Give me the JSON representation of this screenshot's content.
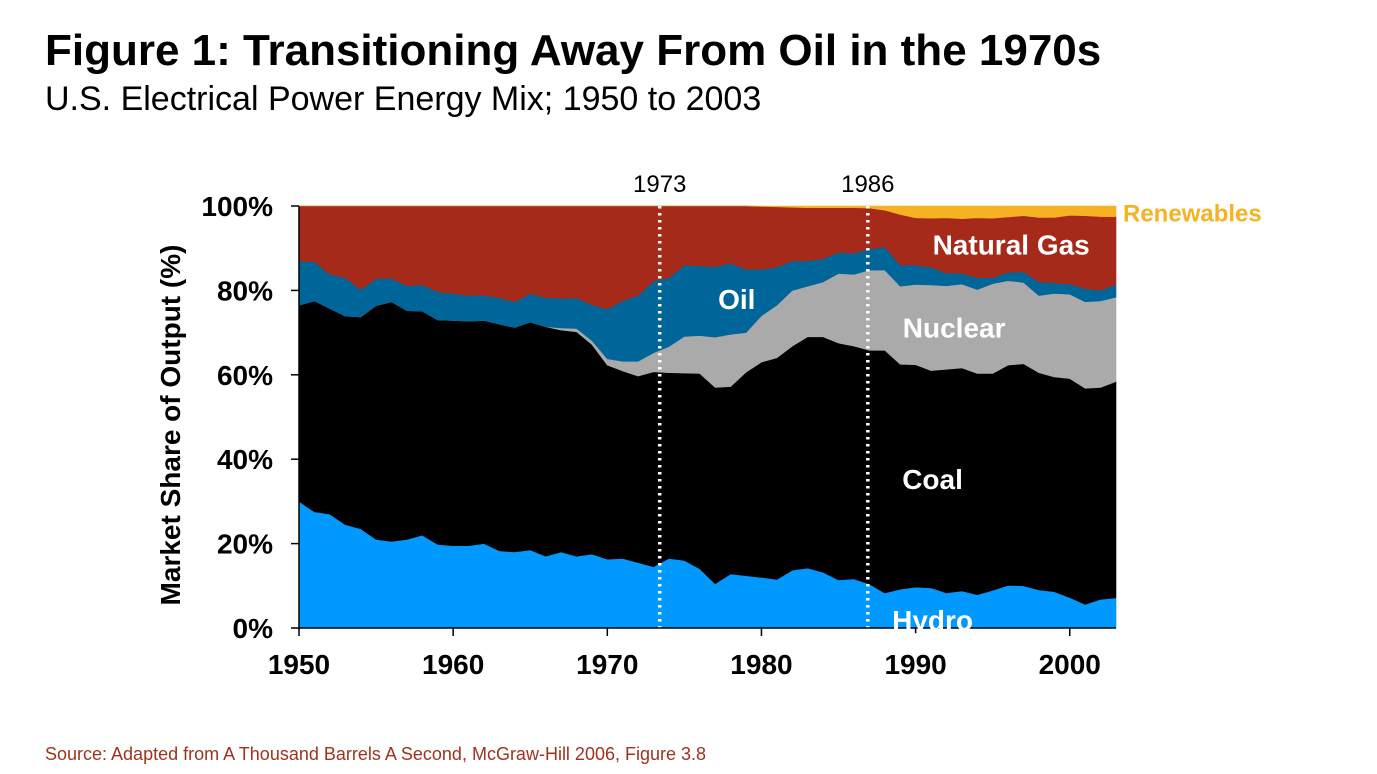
{
  "page": {
    "title": "Figure 1: Transitioning Away From Oil in the 1970s",
    "subtitle": "U.S. Electrical Power Energy Mix; 1950 to 2003",
    "source": "Source: Adapted from A Thousand Barrels A Second, McGraw-Hill 2006, Figure 3.8"
  },
  "chart_data": {
    "type": "area",
    "stacked": true,
    "title": "",
    "xlabel": "",
    "ylabel": "Market Share of Output (%)",
    "xlim": [
      1950,
      2003
    ],
    "ylim": [
      0,
      100
    ],
    "x_ticks": [
      1950,
      1960,
      1970,
      1980,
      1990,
      2000
    ],
    "y_ticks": [
      0,
      20,
      40,
      60,
      80,
      100
    ],
    "x_tick_labels": [
      "1950",
      "1960",
      "1970",
      "1980",
      "1990",
      "2000"
    ],
    "y_tick_labels": [
      "0%",
      "20%",
      "40%",
      "60%",
      "80%",
      "100%"
    ],
    "grid": false,
    "legend": "inline labels",
    "reference_lines": [
      {
        "x": 1973.4,
        "label": "1973"
      },
      {
        "x": 1986.9,
        "label": "1986"
      }
    ],
    "x": [
      1950,
      1951,
      1952,
      1953,
      1954,
      1955,
      1956,
      1957,
      1958,
      1959,
      1960,
      1961,
      1962,
      1963,
      1964,
      1965,
      1966,
      1967,
      1968,
      1969,
      1970,
      1971,
      1972,
      1973,
      1974,
      1975,
      1976,
      1977,
      1978,
      1979,
      1980,
      1981,
      1982,
      1983,
      1984,
      1985,
      1986,
      1987,
      1988,
      1989,
      1990,
      1991,
      1992,
      1993,
      1994,
      1995,
      1996,
      1997,
      1998,
      1999,
      2000,
      2001,
      2002,
      2003
    ],
    "series": [
      {
        "name": "Hydro",
        "color": "#0099ff",
        "values": [
          30,
          27.5,
          27,
          24.5,
          23.5,
          21,
          20.5,
          21,
          22,
          19.8,
          19.5,
          19.5,
          20,
          18.3,
          18,
          18.5,
          17,
          18,
          17,
          17.5,
          16.3,
          16.5,
          15.5,
          14.5,
          16.5,
          16,
          14,
          10.5,
          12.8,
          12.4,
          12,
          11.5,
          13.7,
          14.2,
          13.2,
          11.4,
          11.6,
          10.4,
          8.3,
          9.2,
          9.7,
          9.5,
          8.3,
          8.8,
          7.9,
          8.9,
          10.1,
          10,
          9,
          8.6,
          7.2,
          5.6,
          6.8,
          7.1
        ]
      },
      {
        "name": "Coal",
        "color": "#000000",
        "values": [
          46.5,
          50,
          48.7,
          49.4,
          50.2,
          55.4,
          56.8,
          54.2,
          53.1,
          53.2,
          53.4,
          53.2,
          52.9,
          53.7,
          53.2,
          54,
          54.4,
          52.6,
          53.2,
          49.7,
          46,
          44.4,
          44.2,
          46.2,
          44,
          44.4,
          46.3,
          46.5,
          44.4,
          48.2,
          51,
          52.5,
          53.1,
          54.8,
          55.8,
          56.1,
          55.2,
          55.4,
          57.5,
          53.3,
          52.7,
          51.5,
          53,
          52.8,
          52.4,
          51.4,
          52.2,
          52.6,
          51.5,
          50.9,
          51.9,
          51.2,
          50.2,
          51.3
        ]
      },
      {
        "name": "Nuclear",
        "color": "#aaaaaa",
        "values": [
          0,
          0,
          0,
          0,
          0,
          0,
          0,
          0,
          0,
          0,
          0,
          0,
          0,
          0,
          0,
          0,
          0,
          0.5,
          0.8,
          0.9,
          1.5,
          2.3,
          3.5,
          4.5,
          6.2,
          8.7,
          9,
          11.9,
          12.4,
          9.4,
          11,
          12.5,
          13.2,
          12,
          13,
          16.5,
          17,
          19,
          19,
          18.5,
          19,
          20.3,
          19.8,
          19.9,
          19.9,
          21.3,
          20,
          19.3,
          18.3,
          19.8,
          20,
          20.5,
          20.5,
          20
        ]
      },
      {
        "name": "Oil",
        "color": "#006699",
        "values": [
          10.4,
          9.3,
          8.1,
          9.1,
          6.5,
          6.4,
          5.6,
          5.9,
          6.2,
          6.7,
          6.3,
          6.1,
          5.9,
          6.2,
          6.1,
          6.7,
          6.9,
          7,
          7.2,
          8.5,
          11.8,
          14.3,
          15.6,
          17,
          16.3,
          16.9,
          16.5,
          16.7,
          16.8,
          15,
          11,
          9,
          7,
          6,
          5.5,
          5,
          5,
          5,
          5.5,
          5,
          4.6,
          4.2,
          3,
          2.5,
          2.8,
          1.4,
          2,
          2.5,
          3.2,
          2.5,
          2.4,
          3.1,
          2.5,
          3
        ]
      },
      {
        "name": "Natural Gas",
        "color": "#a52a1a",
        "values": [
          13.1,
          13.2,
          16.2,
          17,
          19.8,
          17.2,
          17.1,
          18.9,
          18.7,
          20.3,
          20.8,
          21.2,
          21.2,
          21.8,
          22.7,
          20.8,
          21.7,
          21.9,
          21.8,
          23.4,
          24.4,
          22.5,
          21.2,
          17.8,
          17,
          14,
          14.2,
          14.4,
          13.6,
          15,
          14.9,
          14.3,
          12.7,
          12.6,
          12.1,
          10.6,
          10.8,
          9.7,
          8.7,
          12,
          11.2,
          11.6,
          13.1,
          13,
          14.2,
          14.1,
          13.1,
          13.3,
          15.3,
          15.5,
          16.3,
          17.3,
          17.5,
          16.1
        ]
      },
      {
        "name": "Renewables",
        "color": "#f5b324",
        "values": [
          0,
          0,
          0,
          0,
          0,
          0,
          0,
          0,
          0,
          0,
          0,
          0,
          0,
          0,
          0,
          0,
          0,
          0,
          0,
          0,
          0,
          0,
          0,
          0,
          0,
          0,
          0,
          0,
          0,
          0,
          0.1,
          0.2,
          0.3,
          0.4,
          0.4,
          0.4,
          0.4,
          0.5,
          1,
          2,
          2.8,
          2.9,
          2.8,
          3,
          2.8,
          2.9,
          2.6,
          2.3,
          2.7,
          2.7,
          2.2,
          2.3,
          2.5,
          2.5
        ]
      }
    ],
    "area_labels": [
      {
        "series": "Oil",
        "text": "Oil",
        "color": "#ffffff"
      },
      {
        "series": "Natural Gas",
        "text": "Natural Gas",
        "color": "#ffffff"
      },
      {
        "series": "Nuclear",
        "text": "Nuclear",
        "color": "#ffffff"
      },
      {
        "series": "Coal",
        "text": "Coal",
        "color": "#ffffff"
      },
      {
        "series": "Hydro",
        "text": "Hydro",
        "color": "#ffffff"
      },
      {
        "series": "Renewables",
        "text": "Renewables",
        "color": "#f5b324"
      }
    ]
  }
}
